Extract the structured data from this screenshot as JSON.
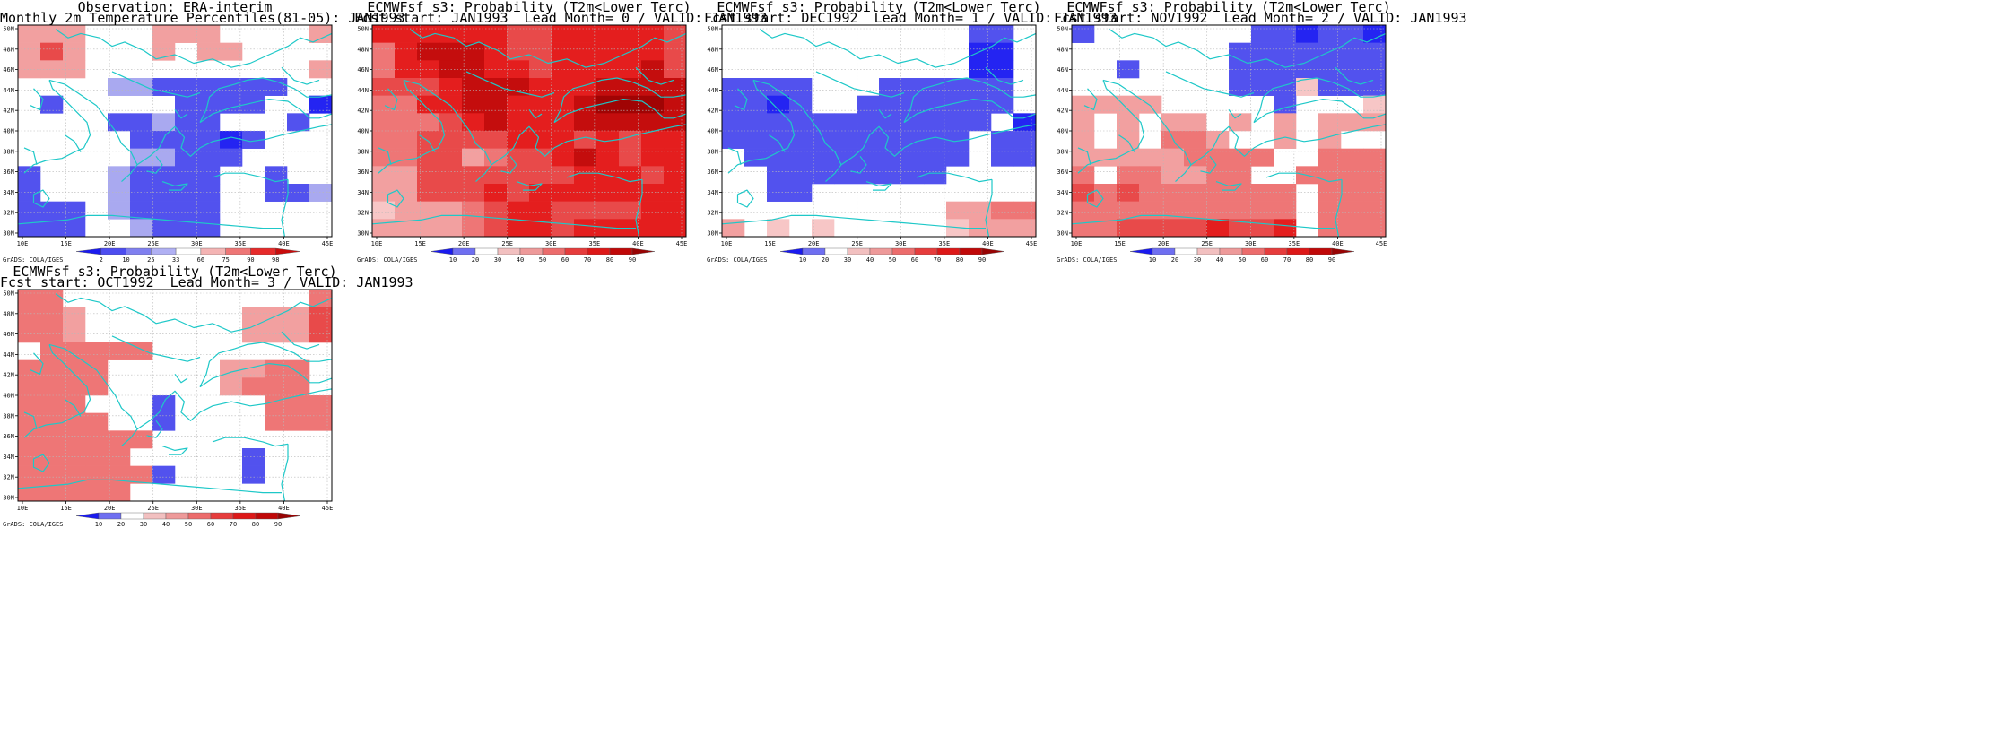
{
  "colors": {
    "red_scale": [
      "#ffffff",
      "#f7c6c6",
      "#f2a0a0",
      "#ee7676",
      "#e84a4a",
      "#e41e1e",
      "#c40d0d",
      "#a00404"
    ],
    "blue_scale": [
      "#ffffff",
      "#a9a9f0",
      "#8080f0",
      "#5252ee",
      "#2424f2",
      "#0000e6"
    ],
    "coast": "#1ec8c8",
    "grid": "#b8b8b8"
  },
  "legends": {
    "obs": {
      "labels": [
        "2",
        "10",
        "25",
        "33",
        "66",
        "75",
        "90",
        "98"
      ],
      "colors": [
        "#1a1aee",
        "#4d4df0",
        "#8080f0",
        "#b0b0f3",
        "#ffffff",
        "#f4b4b4",
        "#ee7676",
        "#e62a2a",
        "#c80c0c"
      ]
    },
    "prob": {
      "labels": [
        "10",
        "20",
        "30",
        "40",
        "50",
        "60",
        "70",
        "80",
        "90"
      ],
      "colors": [
        "#1a1aee",
        "#6f6ff1",
        "#ffffff",
        "#f2c0c0",
        "#ee9a9a",
        "#ec6c6c",
        "#e63c3c",
        "#dd1818",
        "#c00808",
        "#980404"
      ]
    }
  },
  "axes": {
    "lon_ticks": [
      "10E",
      "15E",
      "20E",
      "25E",
      "30E",
      "35E",
      "40E",
      "45E"
    ],
    "lat_ticks": [
      "30N",
      "32N",
      "34N",
      "36N",
      "38N",
      "40N",
      "42N",
      "44N",
      "46N",
      "48N",
      "50N"
    ]
  },
  "credit": "GrADS: COLA/IGES",
  "panels": [
    {
      "line1": "Observation: ERA-interim",
      "line2": "Monthly 2m Temperature Percentiles(81-05): JAN1993",
      "legend": "obs",
      "cells": [
        "rrr...rrr....r",
        "rRr...r.rr....",
        "rrr..........r",
        "....ssbbbbbb..",
        ".b.....bbbb..B",
        "....bbsbb...b.",
        ".....bbbbBb...",
        ".....ssbbb....",
        "b...sbbbb..b..",
        "b...sbbbb..bbs",
        "bbb.sbbbb.....",
        "bbb..sbbb....."
      ]
    },
    {
      "line1": "ECMWFsf s3: Probability (T2m<Lower Terc)",
      "line2": "Fcst start: JAN1993  Lead Month= 0 / VALID: JAN1993",
      "legend": "prob",
      "cells": [
        "55555544555554",
        "35666544555554",
        "35566554555564",
        "44456665556666",
        "33556655567776",
        "33345655566666",
        "33444455545455",
        "33442344565455",
        "22444444455545",
        "22444545555555",
        "12223455444455",
        "22223455455555"
      ]
    },
    {
      "line1": "ECMWFsf s3: Probability (T2m<Lower Terc)",
      "line2": "Fcst start: DEC1992  Lead Month= 1 / VALID: JAN1993",
      "legend": "prob",
      "cells": [
        "...........bb.",
        "...........BB.",
        "...........BB.",
        "bbbb...bbbbbb.",
        "bbBb..bbbbbbb.",
        "bbbbbbbbbbbb.B",
        "bbbbbbbbbbb.bb",
        ".bbbbbbbbbb.bb",
        "..bbbbbbbb....",
        "..bb..........",
        "..........2233",
        "2.1.1.....1222"
      ]
    },
    {
      "line1": "ECMWFsf s3: Probability (T2m<Lower Terc)",
      "line2": "Fcst start: NOV1992  Lead Month= 2 / VALID: JAN1993",
      "legend": "prob",
      "cells": [
        "b.......bbBbbB",
        ".......bbbbbbb",
        "..b....bbbbbbb",
        ".......bbb1bbb",
        "2222.....b...1",
        "2.2.22.2.2.222",
        "2.2.332..2.2..",
        "222223333..333",
        "3.332233..3333",
        "4343333333.333",
        "3333333333.333",
        "3344445445.333"
      ]
    },
    {
      "line1": "ECMWFsf s3: Probability (T2m<Lower Terc)",
      "line2": "Fcst start: OCT1992  Lead Month= 3 / VALID: JAN1993",
      "legend": "prob",
      "cells": [
        "33...........3",
        "332.......2224",
        "332.......2224",
        ".33333........",
        "3333.....2233.",
        "3333.....2333.",
        "333...b....333",
        "3333..b....333",
        "333333........",
        "33333.....b...",
        "333333b...b...",
        "33333........."
      ]
    }
  ]
}
